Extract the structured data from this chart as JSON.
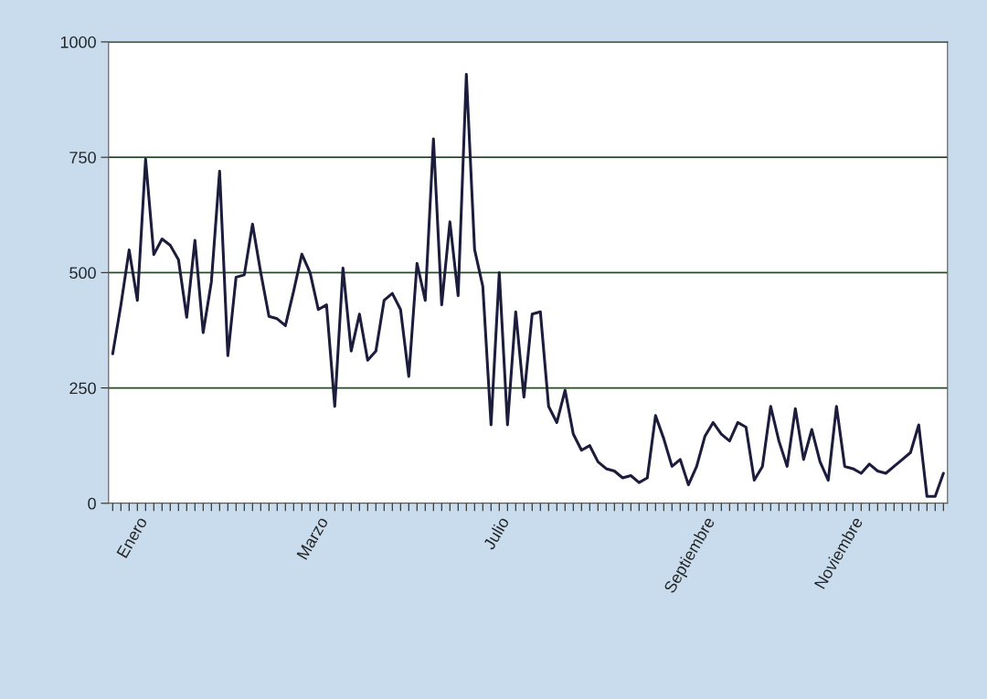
{
  "chart_data": {
    "type": "line",
    "categories": [
      null,
      null,
      null,
      "Enero",
      null,
      null,
      null,
      null,
      null,
      null,
      null,
      null,
      null,
      null,
      null,
      null,
      null,
      null,
      null,
      null,
      null,
      null,
      null,
      null,
      null,
      "Marzo",
      null,
      null,
      null,
      null,
      null,
      null,
      null,
      null,
      null,
      null,
      null,
      null,
      null,
      null,
      null,
      null,
      null,
      null,
      null,
      null,
      null,
      "Julio",
      null,
      null,
      null,
      null,
      null,
      null,
      null,
      null,
      null,
      null,
      null,
      null,
      null,
      null,
      null,
      null,
      null,
      null,
      null,
      null,
      null,
      null,
      null,
      null,
      "Septiembre",
      null,
      null,
      null,
      null,
      null,
      null,
      null,
      null,
      null,
      null,
      null,
      null,
      null,
      null,
      null,
      null,
      null,
      "Noviembre",
      null,
      null,
      null,
      null,
      null,
      null,
      null,
      null,
      null,
      null,
      null
    ],
    "series": [
      {
        "color": "#1c1c3c",
        "values": [
          324,
          430,
          549,
          440,
          746,
          539,
          573,
          559,
          528,
          403,
          570,
          370,
          480,
          720,
          320,
          490,
          495,
          605,
          500,
          405,
          400,
          385,
          460,
          540,
          500,
          420,
          430,
          210,
          510,
          330,
          410,
          310,
          330,
          440,
          455,
          420,
          275,
          520,
          440,
          790,
          430,
          610,
          450,
          930,
          550,
          470,
          170,
          500,
          170,
          415,
          230,
          410,
          415,
          210,
          175,
          245,
          150,
          115,
          125,
          90,
          75,
          70,
          55,
          60,
          45,
          55,
          190,
          140,
          80,
          95,
          40,
          80,
          145,
          175,
          150,
          135,
          175,
          165,
          50,
          80,
          210,
          135,
          80,
          205,
          95,
          160,
          90,
          50,
          210,
          80,
          75,
          65,
          85,
          70,
          65,
          80,
          95,
          110,
          170,
          15,
          15,
          65
        ]
      }
    ],
    "ylim": [
      0,
      1000
    ],
    "yticks": [
      0,
      250,
      500,
      750,
      1000
    ],
    "grid": "y",
    "marker": "none",
    "line_style": "solid",
    "legend": false
  }
}
